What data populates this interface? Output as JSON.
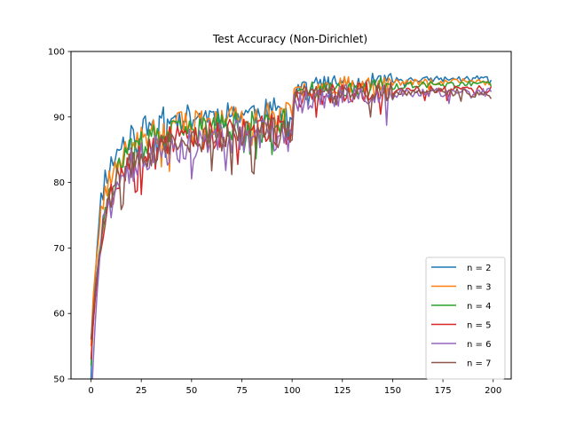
{
  "chart_data": {
    "type": "line",
    "title": "Test Accuracy (Non-Dirichlet)",
    "xlabel": "",
    "ylabel": "",
    "xlim": [
      -9.95,
      208.95
    ],
    "ylim": [
      50,
      100
    ],
    "xticks": [
      0,
      25,
      50,
      75,
      100,
      125,
      150,
      175,
      200
    ],
    "yticks": [
      50,
      60,
      70,
      80,
      90,
      100
    ],
    "grid": false,
    "legend_placement": "lower-right",
    "x": {
      "start": 0,
      "end": 199,
      "step": 1
    },
    "series": [
      {
        "name": "n = 2",
        "color": "#1f77b4",
        "anchors": [
          [
            0,
            50
          ],
          [
            1,
            60
          ],
          [
            2,
            65
          ],
          [
            3,
            70
          ],
          [
            4,
            74
          ],
          [
            5,
            77
          ],
          [
            6,
            79
          ],
          [
            7,
            81
          ],
          [
            9,
            82
          ],
          [
            11,
            83.5
          ],
          [
            13,
            84.5
          ],
          [
            15,
            85.5
          ],
          [
            17,
            86.5
          ],
          [
            20,
            87
          ],
          [
            25,
            88
          ],
          [
            30,
            89
          ],
          [
            35,
            89.5
          ],
          [
            40,
            89.7
          ],
          [
            50,
            90
          ],
          [
            60,
            90.3
          ],
          [
            70,
            90.5
          ],
          [
            80,
            90.7
          ],
          [
            90,
            90.9
          ],
          [
            99,
            91.3
          ],
          [
            100,
            91
          ],
          [
            101,
            94.3
          ],
          [
            102,
            94.5
          ],
          [
            105,
            94.8
          ],
          [
            110,
            95
          ],
          [
            120,
            95.2
          ],
          [
            130,
            95.4
          ],
          [
            140,
            95.5
          ],
          [
            150,
            95.6
          ],
          [
            160,
            95.7
          ],
          [
            170,
            95.8
          ],
          [
            180,
            95.8
          ],
          [
            190,
            95.9
          ],
          [
            199,
            95.9
          ]
        ],
        "amp": [
          0,
          2.0,
          1.2,
          0.4
        ],
        "seed": 11
      },
      {
        "name": "n = 3",
        "color": "#ff7f0e",
        "anchors": [
          [
            0,
            55
          ],
          [
            1,
            62
          ],
          [
            2,
            66
          ],
          [
            3,
            69
          ],
          [
            4,
            72
          ],
          [
            5,
            75
          ],
          [
            6,
            77
          ],
          [
            7,
            78.5
          ],
          [
            9,
            80
          ],
          [
            11,
            81.5
          ],
          [
            13,
            82.5
          ],
          [
            15,
            83.5
          ],
          [
            17,
            84.5
          ],
          [
            20,
            85.5
          ],
          [
            25,
            86.5
          ],
          [
            30,
            87.5
          ],
          [
            40,
            88.5
          ],
          [
            50,
            89
          ],
          [
            60,
            89.3
          ],
          [
            70,
            89.6
          ],
          [
            80,
            89.8
          ],
          [
            90,
            90
          ],
          [
            99,
            90.2
          ],
          [
            100,
            89.5
          ],
          [
            101,
            93.5
          ],
          [
            102,
            93.8
          ],
          [
            105,
            94.2
          ],
          [
            110,
            94.5
          ],
          [
            120,
            94.8
          ],
          [
            130,
            95
          ],
          [
            140,
            95.1
          ],
          [
            150,
            95.2
          ],
          [
            160,
            95.3
          ],
          [
            170,
            95.4
          ],
          [
            180,
            95.4
          ],
          [
            190,
            95.4
          ],
          [
            199,
            95.3
          ]
        ],
        "amp": [
          0,
          2.2,
          1.3,
          0.5
        ],
        "seed": 23
      },
      {
        "name": "n = 4",
        "color": "#2ca02c",
        "anchors": [
          [
            0,
            52
          ],
          [
            1,
            58
          ],
          [
            2,
            62
          ],
          [
            3,
            66
          ],
          [
            4,
            69
          ],
          [
            5,
            72
          ],
          [
            6,
            74
          ],
          [
            7,
            76
          ],
          [
            9,
            78
          ],
          [
            11,
            80
          ],
          [
            13,
            81.5
          ],
          [
            15,
            82.5
          ],
          [
            17,
            83.5
          ],
          [
            20,
            84.5
          ],
          [
            25,
            85.5
          ],
          [
            30,
            86.5
          ],
          [
            40,
            87.3
          ],
          [
            50,
            87.8
          ],
          [
            60,
            88.2
          ],
          [
            70,
            88.5
          ],
          [
            80,
            88.8
          ],
          [
            90,
            89
          ],
          [
            99,
            89.2
          ],
          [
            100,
            88.5
          ],
          [
            101,
            93.2
          ],
          [
            102,
            93.5
          ],
          [
            105,
            93.8
          ],
          [
            110,
            94
          ],
          [
            120,
            94.3
          ],
          [
            130,
            94.5
          ],
          [
            140,
            94.6
          ],
          [
            150,
            94.7
          ],
          [
            160,
            94.8
          ],
          [
            170,
            94.9
          ],
          [
            180,
            94.9
          ],
          [
            190,
            95
          ],
          [
            199,
            95
          ]
        ],
        "amp": [
          0,
          2.3,
          1.4,
          0.5
        ],
        "seed": 37
      },
      {
        "name": "n = 5",
        "color": "#d62728",
        "anchors": [
          [
            0,
            53
          ],
          [
            1,
            58
          ],
          [
            2,
            62
          ],
          [
            3,
            65
          ],
          [
            4,
            68
          ],
          [
            5,
            71
          ],
          [
            6,
            73
          ],
          [
            7,
            75
          ],
          [
            9,
            77
          ],
          [
            11,
            79
          ],
          [
            13,
            80.5
          ],
          [
            15,
            81.5
          ],
          [
            17,
            82.5
          ],
          [
            20,
            83.5
          ],
          [
            25,
            84.5
          ],
          [
            30,
            85.5
          ],
          [
            40,
            86.3
          ],
          [
            50,
            86.8
          ],
          [
            60,
            87.2
          ],
          [
            70,
            87.5
          ],
          [
            80,
            87.8
          ],
          [
            90,
            88
          ],
          [
            99,
            88.2
          ],
          [
            100,
            87.5
          ],
          [
            101,
            92.5
          ],
          [
            102,
            92.8
          ],
          [
            105,
            93
          ],
          [
            110,
            93.3
          ],
          [
            120,
            93.6
          ],
          [
            130,
            93.8
          ],
          [
            140,
            93.9
          ],
          [
            150,
            94
          ],
          [
            160,
            94.1
          ],
          [
            170,
            94.2
          ],
          [
            180,
            94.2
          ],
          [
            190,
            94.2
          ],
          [
            199,
            94.1
          ]
        ],
        "amp": [
          0,
          2.5,
          1.6,
          0.6
        ],
        "seed": 53
      },
      {
        "name": "n = 6",
        "color": "#9467bd",
        "anchors": [
          [
            0,
            45
          ],
          [
            1,
            52
          ],
          [
            2,
            58
          ],
          [
            3,
            63
          ],
          [
            4,
            67
          ],
          [
            5,
            70
          ],
          [
            6,
            72.5
          ],
          [
            7,
            74.5
          ],
          [
            9,
            76.5
          ],
          [
            11,
            78
          ],
          [
            13,
            79.5
          ],
          [
            15,
            80.5
          ],
          [
            17,
            81.5
          ],
          [
            20,
            82.5
          ],
          [
            25,
            83.5
          ],
          [
            30,
            84.5
          ],
          [
            40,
            85.5
          ],
          [
            50,
            86
          ],
          [
            60,
            86.5
          ],
          [
            70,
            86.8
          ],
          [
            80,
            87
          ],
          [
            90,
            87.2
          ],
          [
            99,
            87.3
          ],
          [
            100,
            86.8
          ],
          [
            101,
            92
          ],
          [
            102,
            92.3
          ],
          [
            105,
            92.6
          ],
          [
            110,
            92.9
          ],
          [
            120,
            93.2
          ],
          [
            130,
            93.4
          ],
          [
            140,
            93.5
          ],
          [
            150,
            93.6
          ],
          [
            160,
            93.7
          ],
          [
            170,
            93.8
          ],
          [
            180,
            93.8
          ],
          [
            190,
            93.8
          ],
          [
            199,
            93.7
          ]
        ],
        "amp": [
          0,
          2.7,
          1.7,
          0.7
        ],
        "seed": 71
      },
      {
        "name": "n = 7",
        "color": "#8c564b",
        "anchors": [
          [
            0,
            56
          ],
          [
            1,
            60
          ],
          [
            2,
            63
          ],
          [
            3,
            66
          ],
          [
            4,
            69
          ],
          [
            5,
            71.5
          ],
          [
            6,
            73.5
          ],
          [
            7,
            75
          ],
          [
            9,
            77
          ],
          [
            11,
            78.5
          ],
          [
            13,
            79.8
          ],
          [
            15,
            80.8
          ],
          [
            17,
            81.8
          ],
          [
            20,
            82.8
          ],
          [
            25,
            83.8
          ],
          [
            30,
            84.8
          ],
          [
            40,
            85.8
          ],
          [
            50,
            86.3
          ],
          [
            60,
            86.8
          ],
          [
            70,
            87.1
          ],
          [
            80,
            87.4
          ],
          [
            90,
            87.6
          ],
          [
            99,
            87.8
          ],
          [
            100,
            87.3
          ],
          [
            101,
            92.8
          ],
          [
            102,
            93
          ],
          [
            105,
            93.2
          ],
          [
            110,
            93.4
          ],
          [
            120,
            93.6
          ],
          [
            130,
            93.7
          ],
          [
            140,
            93.8
          ],
          [
            150,
            93.8
          ],
          [
            160,
            93.9
          ],
          [
            170,
            93.9
          ],
          [
            180,
            93.8
          ],
          [
            190,
            93.6
          ],
          [
            199,
            93.1
          ]
        ],
        "amp": [
          0,
          2.4,
          1.5,
          0.6
        ],
        "seed": 89
      }
    ]
  }
}
